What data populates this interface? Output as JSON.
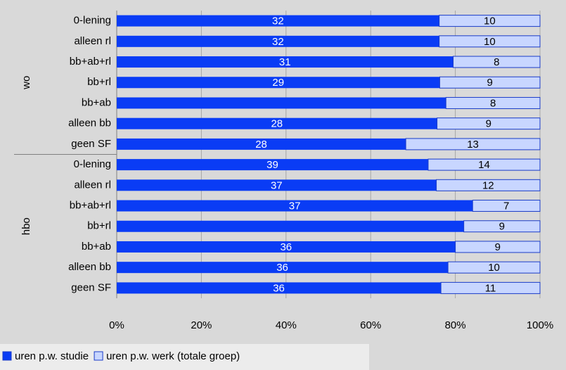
{
  "chart_data": {
    "type": "bar",
    "orientation": "horizontal",
    "stacked_percent": true,
    "groups": [
      {
        "name": "wo",
        "categories": [
          "0-lening",
          "alleen rl",
          "bb+ab+rl",
          "bb+rl",
          "bb+ab",
          "alleen bb",
          "geen SF"
        ]
      },
      {
        "name": "hbo",
        "categories": [
          "0-lening",
          "alleen rl",
          "bb+ab+rl",
          "bb+rl",
          "bb+ab",
          "alleen bb",
          "geen SF"
        ]
      }
    ],
    "series": [
      {
        "name": "uren p.w. studie",
        "color": "#0a3cf5",
        "label_color": "#ffffff",
        "values": [
          32,
          32,
          31,
          29,
          28,
          28,
          28,
          39,
          37,
          37,
          41,
          36,
          36,
          36
        ],
        "value_labels": [
          "32",
          "32",
          "31",
          "29",
          null,
          "28",
          "28",
          "39",
          "37",
          "37",
          null,
          "36",
          "36",
          "36"
        ]
      },
      {
        "name": "uren p.w. werk (totale groep)",
        "color": "#c8d6ff",
        "label_color": "#000000",
        "values": [
          10,
          10,
          8,
          9,
          8,
          9,
          13,
          14,
          12,
          7,
          9,
          9,
          10,
          11
        ]
      }
    ],
    "xlim": [
      0,
      100
    ],
    "xticks": [
      {
        "value": 0,
        "label": "0%"
      },
      {
        "value": 20,
        "label": "20%"
      },
      {
        "value": 40,
        "label": "40%"
      },
      {
        "value": 60,
        "label": "60%"
      },
      {
        "value": 80,
        "label": "80%"
      },
      {
        "value": 100,
        "label": "100%"
      }
    ],
    "grid": true,
    "legend": "bottom-left"
  }
}
